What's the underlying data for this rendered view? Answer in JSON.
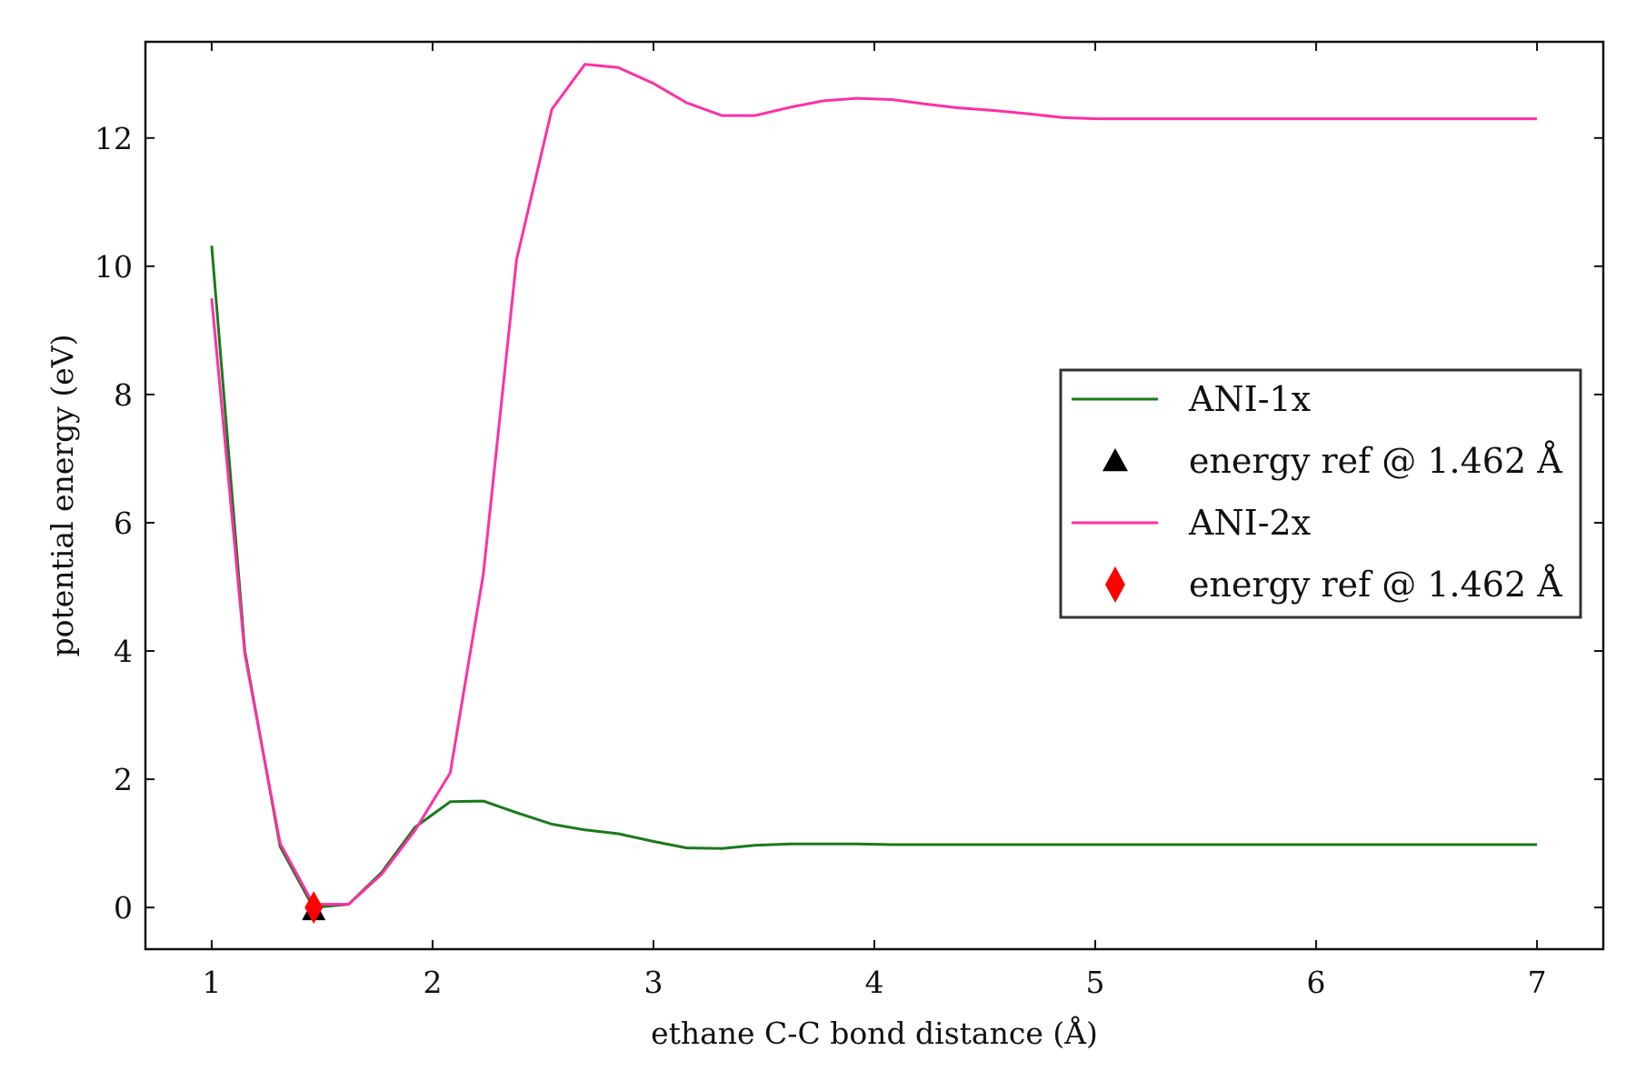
{
  "chart_data": {
    "type": "line",
    "title": "",
    "xlabel": "ethane C-C bond distance (Å)",
    "ylabel": "potential energy (eV)",
    "xlim": [
      0.7,
      7.3
    ],
    "ylim": [
      -0.65,
      13.5
    ],
    "xticks": [
      1,
      2,
      3,
      4,
      5,
      6,
      7
    ],
    "yticks": [
      0,
      2,
      4,
      6,
      8,
      10,
      12
    ],
    "grid": false,
    "legend_position": "center-right",
    "series": [
      {
        "name": "ANI-1x",
        "kind": "line",
        "color": "#1a7a1a",
        "x": [
          1.0,
          1.15,
          1.31,
          1.46,
          1.62,
          1.77,
          1.92,
          2.08,
          2.23,
          2.38,
          2.54,
          2.69,
          2.84,
          3.0,
          3.15,
          3.31,
          3.46,
          3.62,
          3.77,
          3.92,
          4.08,
          4.23,
          4.38,
          4.54,
          4.69,
          4.85,
          5.0,
          5.5,
          6.0,
          6.5,
          7.0
        ],
        "y": [
          10.32,
          4.0,
          0.95,
          0.0,
          0.05,
          0.55,
          1.25,
          1.65,
          1.66,
          1.48,
          1.3,
          1.21,
          1.15,
          1.03,
          0.93,
          0.92,
          0.97,
          0.99,
          0.99,
          0.99,
          0.98,
          0.98,
          0.98,
          0.98,
          0.98,
          0.98,
          0.98,
          0.98,
          0.98,
          0.98,
          0.98
        ]
      },
      {
        "name": "energy ref @ 1.462 Å",
        "kind": "marker",
        "marker": "triangle",
        "color": "#000000",
        "x": [
          1.462
        ],
        "y": [
          -0.05
        ]
      },
      {
        "name": "ANI-2x",
        "kind": "line",
        "color": "#ff2fa6",
        "x": [
          1.0,
          1.15,
          1.31,
          1.46,
          1.62,
          1.77,
          1.92,
          2.08,
          2.23,
          2.38,
          2.54,
          2.69,
          2.84,
          3.0,
          3.15,
          3.31,
          3.46,
          3.62,
          3.77,
          3.92,
          4.08,
          4.23,
          4.38,
          4.54,
          4.69,
          4.85,
          5.0,
          5.5,
          6.0,
          6.5,
          7.0
        ],
        "y": [
          9.5,
          3.95,
          1.0,
          0.05,
          0.05,
          0.52,
          1.2,
          2.1,
          5.2,
          10.1,
          12.45,
          13.15,
          13.1,
          12.85,
          12.55,
          12.35,
          12.35,
          12.48,
          12.58,
          12.62,
          12.6,
          12.53,
          12.47,
          12.43,
          12.38,
          12.32,
          12.3,
          12.3,
          12.3,
          12.3,
          12.3
        ]
      },
      {
        "name": "energy ref @ 1.462 Å",
        "kind": "marker",
        "marker": "diamond",
        "color": "#ff0000",
        "x": [
          1.462
        ],
        "y": [
          0.0
        ]
      }
    ]
  }
}
